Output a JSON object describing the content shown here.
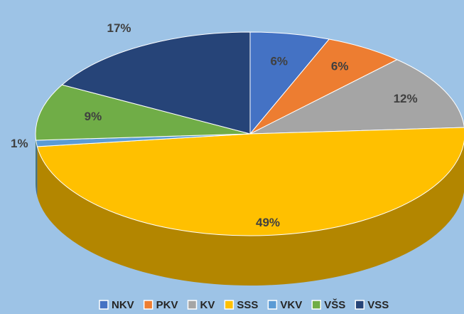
{
  "chart_data": {
    "type": "pie",
    "categories": [
      "NKV",
      "PKV",
      "KV",
      "SSS",
      "VKV",
      "VŠS",
      "VSS"
    ],
    "values": [
      6,
      6,
      12,
      49,
      1,
      9,
      17
    ],
    "value_labels": [
      "6%",
      "6%",
      "12%",
      "49%",
      "1%",
      "9%",
      "17%"
    ],
    "colors": [
      "#4472c4",
      "#ed7d31",
      "#a5a5a5",
      "#ffc000",
      "#5b9bd5",
      "#70ad47",
      "#264478"
    ],
    "legend": "bottom"
  }
}
